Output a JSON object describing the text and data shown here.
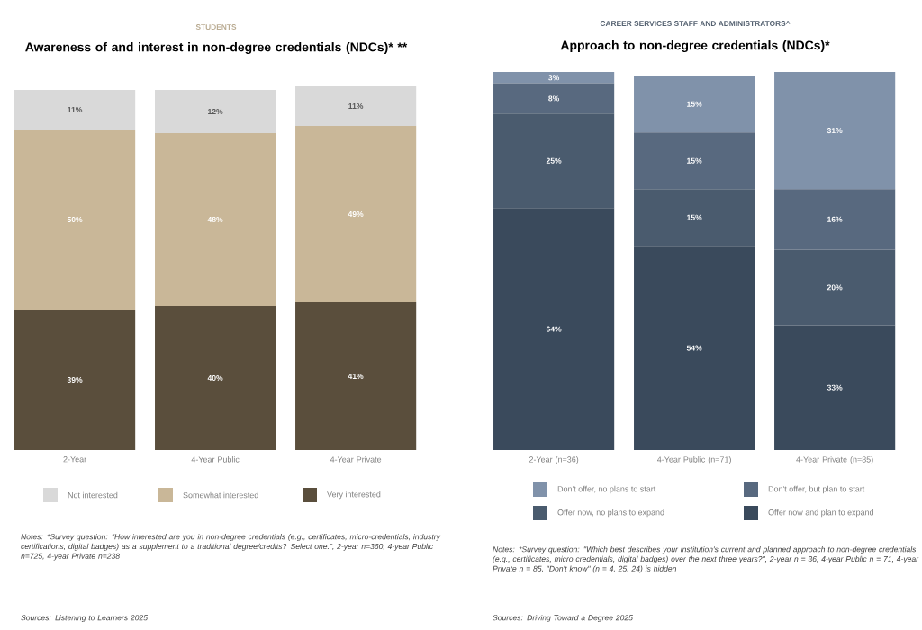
{
  "chart_data": [
    {
      "type": "bar",
      "stacked": true,
      "tick_labels": "x",
      "legend": "bottom",
      "subtitle": "STUDENTS",
      "title": "Awareness of and interest in non-degree credentials (NDCs)* **",
      "categories": [
        "2-Year",
        "4-Year Public",
        "4-Year Private"
      ],
      "series": [
        {
          "name": "Very interested",
          "color": "#5a4e3c",
          "values": [
            39,
            40,
            41
          ],
          "value_labels": [
            "39%",
            "40%",
            "41%"
          ]
        },
        {
          "name": "Somewhat interested",
          "color": "#c9b798",
          "values": [
            50,
            48,
            49
          ],
          "value_labels": [
            "50%",
            "48%",
            "49%"
          ]
        },
        {
          "name": "Not interested",
          "color": "#d9d9d9",
          "values": [
            11,
            12,
            11
          ],
          "value_labels": [
            "11%",
            "12%",
            "11%"
          ]
        }
      ],
      "annotations": [
        "Notes: *Survey question: \"How interested are you in non-degree credentials (e.g., certificates, micro-credentials, industry certifications, digital badges) as a supplement to a traditional degree/credits? Select one.\", 2-year n=360, 4-year Public n=725, 4-year Private n=238",
        "Sources: Listening to Learners 2025"
      ]
    },
    {
      "type": "bar",
      "stacked": true,
      "tick_labels": "x",
      "legend": "bottom",
      "subtitle": "CAREER SERVICES STAFF AND ADMINISTRATORS^",
      "title": "Approach to non-degree credentials (NDCs)*",
      "categories": [
        "2-Year (n=36)",
        "4-Year Public (n=71)",
        "4-Year Private (n=85)"
      ],
      "series": [
        {
          "name": "Offer now and plan to expand",
          "color": "#3a4a5c",
          "values": [
            64,
            54,
            33
          ],
          "value_labels": [
            "64%",
            "54%",
            "33%"
          ]
        },
        {
          "name": "Offer now, no plans to expand",
          "color": "#4a5b6e",
          "values": [
            25,
            15,
            20
          ],
          "value_labels": [
            "25%",
            "15%",
            "20%"
          ]
        },
        {
          "name": "Don't offer, but plan to start",
          "color": "#58697f",
          "values": [
            8,
            15,
            16
          ],
          "value_labels": [
            "8%",
            "15%",
            "16%"
          ]
        },
        {
          "name": "Don't offer, no plans to start",
          "color": "#8092aa",
          "values": [
            3,
            15,
            31
          ],
          "value_labels": [
            "3%",
            "15%",
            "31%"
          ]
        }
      ],
      "annotations": [
        "Notes: *Survey question: \"Which best describes your institution's current and planned approach to non-degree credentials (e.g., certificates, micro credentials, digital badges) over the next three years?\", 2-year n = 36, 4-year Public n = 71, 4-year Private n = 85, \"Don't know\" (n = 4, 25, 24) is hidden",
        "Sources: Driving Toward a Degree 2025"
      ]
    }
  ]
}
